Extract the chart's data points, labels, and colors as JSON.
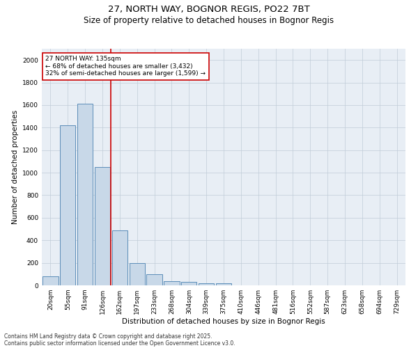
{
  "title1": "27, NORTH WAY, BOGNOR REGIS, PO22 7BT",
  "title2": "Size of property relative to detached houses in Bognor Regis",
  "xlabel": "Distribution of detached houses by size in Bognor Regis",
  "ylabel": "Number of detached properties",
  "categories": [
    "20sqm",
    "55sqm",
    "91sqm",
    "126sqm",
    "162sqm",
    "197sqm",
    "233sqm",
    "268sqm",
    "304sqm",
    "339sqm",
    "375sqm",
    "410sqm",
    "446sqm",
    "481sqm",
    "516sqm",
    "552sqm",
    "587sqm",
    "623sqm",
    "658sqm",
    "694sqm",
    "729sqm"
  ],
  "values": [
    80,
    1420,
    1610,
    1050,
    490,
    200,
    100,
    37,
    28,
    18,
    18,
    0,
    0,
    0,
    0,
    0,
    0,
    0,
    0,
    0,
    0
  ],
  "bar_color": "#c8d8e8",
  "bar_edge_color": "#5b8db8",
  "vline_x": 3.5,
  "vline_color": "#cc0000",
  "annotation_text": "27 NORTH WAY: 135sqm\n← 68% of detached houses are smaller (3,432)\n32% of semi-detached houses are larger (1,599) →",
  "annotation_box_color": "#ffffff",
  "annotation_box_edge": "#cc0000",
  "ylim": [
    0,
    2100
  ],
  "yticks": [
    0,
    200,
    400,
    600,
    800,
    1000,
    1200,
    1400,
    1600,
    1800,
    2000
  ],
  "bg_color": "#e8eef5",
  "footer1": "Contains HM Land Registry data © Crown copyright and database right 2025.",
  "footer2": "Contains public sector information licensed under the Open Government Licence v3.0.",
  "title1_fontsize": 9.5,
  "title2_fontsize": 8.5,
  "xlabel_fontsize": 7.5,
  "ylabel_fontsize": 7.5,
  "tick_fontsize": 6.5,
  "annotation_fontsize": 6.5,
  "footer_fontsize": 5.5
}
